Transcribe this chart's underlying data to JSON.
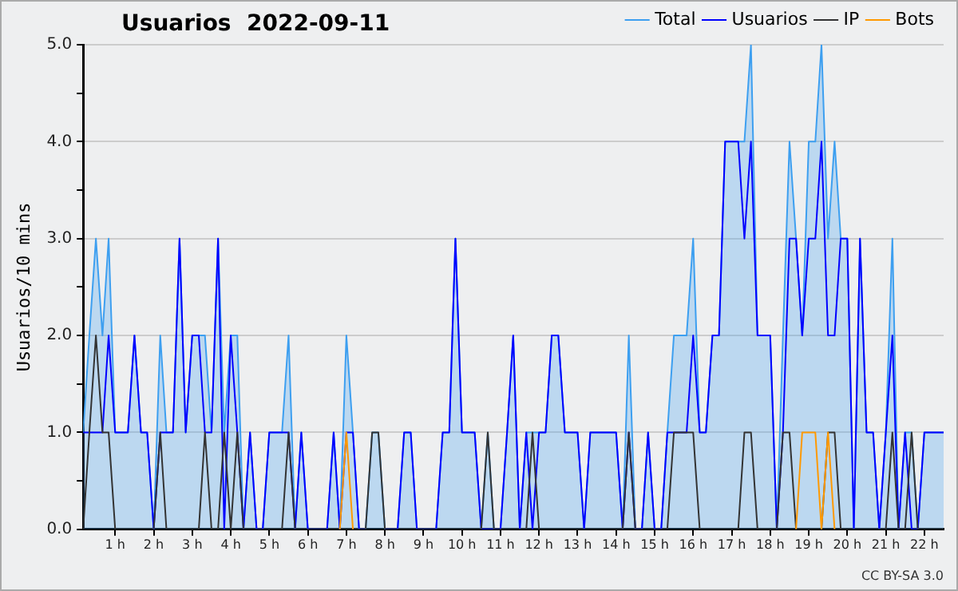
{
  "chart_data": {
    "type": "line",
    "title": "Usuarios  2022-09-11",
    "ylabel": "Usuarios/10 mins",
    "annotations": [
      "CC BY-SA 3.0"
    ],
    "x": [
      0.17,
      0.33,
      0.5,
      0.67,
      0.83,
      1,
      1.17,
      1.33,
      1.5,
      1.67,
      1.83,
      2,
      2.17,
      2.33,
      2.5,
      2.67,
      2.83,
      3,
      3.17,
      3.33,
      3.5,
      3.67,
      3.83,
      4,
      4.17,
      4.33,
      4.5,
      4.67,
      4.83,
      5,
      5.17,
      5.33,
      5.5,
      5.67,
      5.83,
      6,
      6.17,
      6.33,
      6.5,
      6.67,
      6.83,
      7,
      7.17,
      7.33,
      7.5,
      7.67,
      7.83,
      8,
      8.17,
      8.33,
      8.5,
      8.67,
      8.83,
      9,
      9.17,
      9.33,
      9.5,
      9.67,
      9.83,
      10,
      10.17,
      10.33,
      10.5,
      10.67,
      10.83,
      11,
      11.17,
      11.33,
      11.5,
      11.67,
      11.83,
      12,
      12.17,
      12.33,
      12.5,
      12.67,
      12.83,
      13,
      13.17,
      13.33,
      13.5,
      13.67,
      13.83,
      14,
      14.17,
      14.33,
      14.5,
      14.67,
      14.83,
      15,
      15.17,
      15.33,
      15.5,
      15.67,
      15.83,
      16,
      16.17,
      16.33,
      16.5,
      16.67,
      16.83,
      17,
      17.17,
      17.33,
      17.5,
      17.67,
      17.83,
      18,
      18.17,
      18.33,
      18.5,
      18.67,
      18.83,
      19,
      19.17,
      19.33,
      19.5,
      19.67,
      19.83,
      20,
      20.17,
      20.33,
      20.5,
      20.67,
      20.83,
      21,
      21.17,
      21.33,
      21.5,
      21.67,
      21.83,
      22,
      22.17,
      22.33,
      22.5
    ],
    "series": [
      {
        "name": "Total",
        "type": "area",
        "color": "#3d9ff0",
        "values": [
          1,
          2,
          3,
          2,
          3,
          1,
          1,
          1,
          2,
          1,
          1,
          0,
          2,
          1,
          1,
          3,
          1,
          2,
          2,
          2,
          1,
          3,
          1,
          2,
          2,
          0,
          1,
          0,
          0,
          1,
          1,
          1,
          2,
          0,
          1,
          0,
          0,
          0,
          0,
          1,
          0,
          2,
          1,
          0,
          0,
          1,
          1,
          0,
          0,
          0,
          1,
          1,
          0,
          0,
          0,
          0,
          1,
          1,
          3,
          1,
          1,
          1,
          0,
          1,
          0,
          0,
          1,
          2,
          0,
          1,
          1,
          1,
          1,
          2,
          2,
          1,
          1,
          1,
          0,
          1,
          1,
          1,
          1,
          1,
          0,
          2,
          0,
          0,
          1,
          0,
          0,
          1,
          2,
          2,
          2,
          3,
          1,
          1,
          2,
          2,
          4,
          4,
          4,
          4,
          5,
          2,
          2,
          2,
          0,
          2,
          4,
          3,
          2,
          4,
          4,
          5,
          3,
          4,
          3,
          3,
          0,
          3,
          1,
          1,
          0,
          1,
          3,
          0,
          1,
          1,
          0,
          1,
          1,
          1,
          1
        ]
      },
      {
        "name": "Usuarios",
        "type": "line",
        "color": "#0000ff",
        "values": [
          1,
          1,
          1,
          1,
          2,
          1,
          1,
          1,
          2,
          1,
          1,
          0,
          1,
          1,
          1,
          3,
          1,
          2,
          2,
          1,
          1,
          3,
          0,
          2,
          1,
          0,
          1,
          0,
          0,
          1,
          1,
          1,
          1,
          0,
          1,
          0,
          0,
          0,
          0,
          1,
          0,
          1,
          1,
          0,
          0,
          null,
          null,
          0,
          0,
          0,
          1,
          1,
          0,
          0,
          0,
          0,
          1,
          1,
          3,
          1,
          1,
          1,
          0,
          0,
          0,
          0,
          1,
          2,
          0,
          1,
          0,
          1,
          1,
          2,
          2,
          1,
          1,
          1,
          0,
          1,
          1,
          1,
          1,
          1,
          0,
          1,
          0,
          0,
          1,
          0,
          0,
          1,
          1,
          1,
          1,
          2,
          1,
          1,
          2,
          2,
          4,
          4,
          4,
          3,
          4,
          2,
          2,
          2,
          0,
          1,
          3,
          3,
          2,
          3,
          3,
          4,
          2,
          2,
          3,
          3,
          0,
          3,
          1,
          1,
          0,
          1,
          2,
          0,
          1,
          0,
          0,
          1,
          1,
          1,
          1
        ]
      },
      {
        "name": "IP",
        "type": "line",
        "color": "#333333",
        "values": [
          0,
          1,
          2,
          1,
          1,
          0,
          0,
          0,
          0,
          0,
          0,
          0,
          1,
          0,
          0,
          0,
          0,
          0,
          0,
          1,
          0,
          0,
          1,
          0,
          1,
          0,
          0,
          0,
          0,
          0,
          0,
          0,
          1,
          0,
          0,
          0,
          0,
          0,
          0,
          0,
          0,
          0,
          0,
          0,
          0,
          1,
          1,
          0,
          0,
          0,
          0,
          0,
          0,
          0,
          0,
          0,
          0,
          0,
          0,
          0,
          0,
          0,
          0,
          1,
          0,
          0,
          0,
          0,
          0,
          0,
          1,
          0,
          0,
          0,
          0,
          0,
          0,
          0,
          0,
          0,
          0,
          0,
          0,
          0,
          0,
          1,
          0,
          0,
          0,
          0,
          0,
          0,
          1,
          1,
          1,
          1,
          0,
          0,
          0,
          0,
          0,
          0,
          0,
          1,
          1,
          0,
          0,
          0,
          0,
          1,
          1,
          0,
          0,
          0,
          0,
          0,
          1,
          1,
          0,
          0,
          0,
          0,
          0,
          0,
          0,
          0,
          1,
          0,
          0,
          1,
          0,
          0,
          0,
          0,
          0
        ]
      },
      {
        "name": "Bots",
        "type": "line",
        "color": "#ff9900",
        "values": [
          null,
          null,
          null,
          null,
          null,
          null,
          null,
          null,
          null,
          null,
          null,
          null,
          null,
          null,
          null,
          null,
          null,
          null,
          null,
          null,
          null,
          null,
          null,
          null,
          null,
          null,
          null,
          null,
          null,
          null,
          null,
          null,
          null,
          null,
          null,
          null,
          null,
          null,
          null,
          null,
          0,
          1,
          0,
          null,
          null,
          null,
          null,
          null,
          null,
          null,
          null,
          null,
          null,
          null,
          null,
          null,
          null,
          null,
          null,
          null,
          null,
          null,
          null,
          null,
          null,
          null,
          null,
          null,
          null,
          null,
          null,
          null,
          null,
          null,
          null,
          null,
          null,
          null,
          null,
          null,
          null,
          null,
          null,
          null,
          null,
          null,
          null,
          null,
          null,
          null,
          null,
          null,
          null,
          null,
          null,
          null,
          null,
          null,
          null,
          null,
          null,
          null,
          null,
          null,
          null,
          null,
          null,
          null,
          null,
          null,
          null,
          0,
          1,
          1,
          1,
          0,
          1,
          0,
          null,
          null,
          null,
          null,
          null,
          null,
          null,
          null,
          null,
          null,
          null,
          null,
          null,
          null,
          null,
          null,
          null
        ]
      }
    ],
    "xlim": [
      0.17,
      22.5
    ],
    "xticks": [
      {
        "value": 1,
        "label": "1 h"
      },
      {
        "value": 2,
        "label": "2 h"
      },
      {
        "value": 3,
        "label": "3 h"
      },
      {
        "value": 4,
        "label": "4 h"
      },
      {
        "value": 5,
        "label": "5 h"
      },
      {
        "value": 6,
        "label": "6 h"
      },
      {
        "value": 7,
        "label": "7 h"
      },
      {
        "value": 8,
        "label": "8 h"
      },
      {
        "value": 9,
        "label": "9 h"
      },
      {
        "value": 10,
        "label": "10 h"
      },
      {
        "value": 11,
        "label": "11 h"
      },
      {
        "value": 12,
        "label": "12 h"
      },
      {
        "value": 13,
        "label": "13 h"
      },
      {
        "value": 14,
        "label": "14 h"
      },
      {
        "value": 15,
        "label": "15 h"
      },
      {
        "value": 16,
        "label": "16 h"
      },
      {
        "value": 17,
        "label": "17 h"
      },
      {
        "value": 18,
        "label": "18 h"
      },
      {
        "value": 19,
        "label": "19 h"
      },
      {
        "value": 20,
        "label": "20 h"
      },
      {
        "value": 21,
        "label": "21 h"
      },
      {
        "value": 22,
        "label": "22 h"
      }
    ],
    "ylim": [
      0,
      5
    ],
    "yticks": [
      {
        "value": 0,
        "label": "0.0"
      },
      {
        "value": 0.5,
        "label": null
      },
      {
        "value": 1,
        "label": "1.0"
      },
      {
        "value": 1.5,
        "label": null
      },
      {
        "value": 2,
        "label": "2.0"
      },
      {
        "value": 2.5,
        "label": null
      },
      {
        "value": 3,
        "label": "3.0"
      },
      {
        "value": 3.5,
        "label": null
      },
      {
        "value": 4,
        "label": "4.0"
      },
      {
        "value": 4.5,
        "label": null
      },
      {
        "value": 5,
        "label": "5.0"
      }
    ],
    "grid": "y",
    "legend": "top right"
  }
}
